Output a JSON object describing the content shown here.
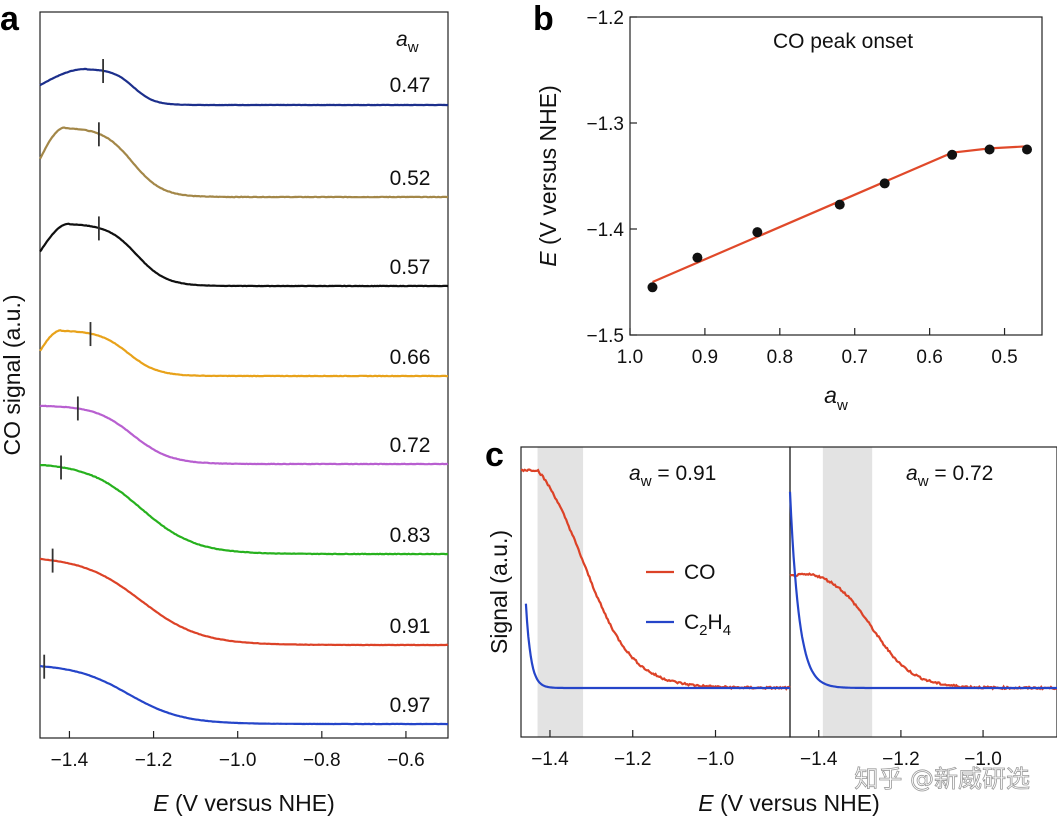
{
  "figure": {
    "panels": [
      "a",
      "b",
      "c"
    ],
    "watermark": "知乎 @新威研选"
  },
  "chart_data": [
    {
      "panel": "a",
      "type": "line",
      "title": "",
      "xlabel_italic": "E",
      "xlabel_rest": " (V versus NHE)",
      "ylabel": "CO signal (a.u.)",
      "xlim": [
        -1.47,
        -0.5
      ],
      "xticks": [
        -1.4,
        -1.2,
        -1.0,
        -0.8,
        -0.6
      ],
      "xtick_labels": [
        "−1.4",
        "−1.2",
        "−1.0",
        "−0.8",
        "−0.6"
      ],
      "legend_header": "a",
      "legend_header_sub": "w",
      "series": [
        {
          "aw": "0.47",
          "color": "#1c2f8c",
          "onset": -1.32,
          "start": -1.47,
          "base": 0.0,
          "peak": 0.75,
          "peak_x": -1.36,
          "width": 0.07,
          "shape": "bump",
          "noise": 0.006
        },
        {
          "aw": "0.52",
          "color": "#a38748",
          "onset": -1.33,
          "start": -1.47,
          "base": 0.0,
          "peak": 1.45,
          "peak_x": -1.41,
          "width": 0.1,
          "shape": "bump",
          "noise": 0.012
        },
        {
          "aw": "0.57",
          "color": "#101010",
          "onset": -1.33,
          "start": -1.47,
          "base": 0.0,
          "peak": 1.3,
          "peak_x": -1.4,
          "width": 0.1,
          "shape": "bump",
          "noise": 0.008
        },
        {
          "aw": "0.66",
          "color": "#e8a21a",
          "onset": -1.35,
          "start": -1.47,
          "base": 0.0,
          "peak": 0.95,
          "peak_x": -1.42,
          "width": 0.1,
          "shape": "bump",
          "noise": 0.01
        },
        {
          "aw": "0.72",
          "color": "#b85fd0",
          "onset": -1.38,
          "start": -1.47,
          "base": 0.0,
          "peak": 1.22,
          "peak_x": -1.39,
          "width": 0.14,
          "shape": "decay",
          "noise": 0.01
        },
        {
          "aw": "0.83",
          "color": "#27b11e",
          "onset": -1.42,
          "start": -1.47,
          "base": 0.0,
          "peak": 1.9,
          "peak_x": -1.43,
          "width": 0.2,
          "shape": "decay",
          "noise": 0.012
        },
        {
          "aw": "0.91",
          "color": "#dc4227",
          "onset": -1.44,
          "start": -1.47,
          "base": 0.0,
          "peak": 1.85,
          "peak_x": -1.45,
          "width": 0.22,
          "shape": "decay",
          "noise": 0.008
        },
        {
          "aw": "0.97",
          "color": "#2545c9",
          "onset": -1.46,
          "start": -1.47,
          "base": 0.0,
          "peak": 1.25,
          "peak_x": -1.46,
          "width": 0.2,
          "shape": "decay",
          "noise": 0.005
        }
      ]
    },
    {
      "panel": "b",
      "type": "scatter",
      "title": "CO peak onset",
      "xlabel": "a",
      "xlabel_sub": "w",
      "ylabel_italic": "E",
      "ylabel_rest": " (V versus NHE)",
      "xlim": [
        1.0,
        0.45
      ],
      "ylim": [
        -1.5,
        -1.2
      ],
      "xticks": [
        1.0,
        0.9,
        0.8,
        0.7,
        0.6,
        0.5
      ],
      "xtick_labels": [
        "1.0",
        "0.9",
        "0.8",
        "0.7",
        "0.6",
        "0.5"
      ],
      "yticks": [
        -1.5,
        -1.4,
        -1.3,
        -1.2
      ],
      "ytick_labels": [
        "−1.5",
        "−1.4",
        "−1.3",
        "−1.2"
      ],
      "points": {
        "x": [
          0.97,
          0.91,
          0.83,
          0.72,
          0.66,
          0.57,
          0.52,
          0.47
        ],
        "y": [
          -1.455,
          -1.427,
          -1.403,
          -1.377,
          -1.357,
          -1.33,
          -1.325,
          -1.325
        ]
      },
      "fit": {
        "x": [
          0.97,
          0.57,
          0.52,
          0.47
        ],
        "y": [
          -1.45,
          -1.328,
          -1.324,
          -1.322
        ],
        "color": "#e0492a"
      }
    },
    {
      "panel": "c",
      "type": "line",
      "ylabel": "Signal (a.u.)",
      "xlabel_italic": "E",
      "xlabel_rest": " (V versus NHE)",
      "legend": [
        {
          "label": "CO",
          "color": "#dc4227"
        },
        {
          "label_main": "C",
          "label_sub1": "2",
          "label_mid": "H",
          "label_sub2": "4",
          "color": "#2545c9"
        }
      ],
      "subpanels": [
        {
          "aw_label_pre": "a",
          "aw_label_sub": "w",
          "aw_label_post": " = 0.91",
          "xlim": [
            -1.47,
            -0.82
          ],
          "xticks": [
            -1.4,
            -1.2,
            -1.0
          ],
          "xtick_labels": [
            "−1.4",
            "−1.2",
            "−1.0"
          ],
          "shade": [
            -1.43,
            -1.32
          ],
          "co": {
            "plateau_end": -1.43,
            "mid": -1.32,
            "width": 0.06
          },
          "c2h4": {
            "onset": -1.46,
            "decay": 0.012
          }
        },
        {
          "aw_label_pre": "a",
          "aw_label_sub": "w",
          "aw_label_post": " = 0.72",
          "xlim": [
            -1.47,
            -0.82
          ],
          "xticks": [
            -1.4,
            -1.2,
            -1.0
          ],
          "xtick_labels": [
            "−1.4",
            "−1.2",
            "−1.0"
          ],
          "shade": [
            -1.39,
            -1.27
          ],
          "co": {
            "peak_x": -1.41,
            "mid": -1.27,
            "width": 0.05
          },
          "c2h4": {
            "onset": -1.47,
            "decay": 0.022
          }
        }
      ]
    }
  ]
}
